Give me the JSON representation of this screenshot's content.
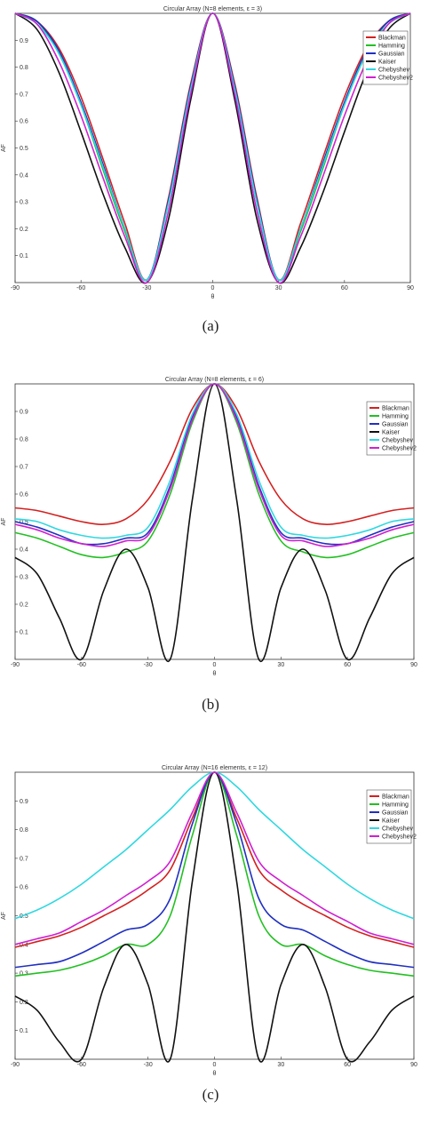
{
  "captions": [
    "(a)",
    "(b)",
    "(c)"
  ],
  "chart_data": [
    {
      "type": "line",
      "title": "Circular Array (N=8 elements, ε = 3)",
      "xlabel": "θ",
      "ylabel": "AF",
      "xlim": [
        -90,
        90
      ],
      "ylim": [
        0,
        1
      ],
      "xticks": [
        "-90",
        "-60",
        "-30",
        "0",
        "30",
        "60",
        "90"
      ],
      "yticks": [
        "0.1",
        "0.2",
        "0.3",
        "0.4",
        "0.5",
        "0.6",
        "0.7",
        "0.8",
        "0.9"
      ],
      "grid": false,
      "legend_position": "top-right",
      "series": [
        {
          "name": "Blackman",
          "color": "#d42020",
          "x": [
            -90,
            -80,
            -70,
            -60,
            -50,
            -40,
            -30,
            -20,
            -10,
            0,
            10,
            20,
            30,
            40,
            50,
            60,
            70,
            80,
            90
          ],
          "values": [
            1,
            0.97,
            0.87,
            0.69,
            0.46,
            0.22,
            0.01,
            0.32,
            0.74,
            1,
            0.74,
            0.32,
            0.01,
            0.22,
            0.46,
            0.69,
            0.87,
            0.97,
            1
          ]
        },
        {
          "name": "Hamming",
          "color": "#22c022",
          "x": [
            -90,
            -80,
            -70,
            -60,
            -50,
            -40,
            -30,
            -20,
            -10,
            0,
            10,
            20,
            30,
            40,
            50,
            60,
            70,
            80,
            90
          ],
          "values": [
            1,
            0.97,
            0.85,
            0.66,
            0.42,
            0.19,
            0.01,
            0.3,
            0.72,
            1,
            0.72,
            0.3,
            0.01,
            0.19,
            0.42,
            0.66,
            0.85,
            0.97,
            1
          ]
        },
        {
          "name": "Gaussian",
          "color": "#2030c0",
          "x": [
            -90,
            -80,
            -70,
            -60,
            -50,
            -40,
            -30,
            -20,
            -10,
            0,
            10,
            20,
            30,
            40,
            50,
            60,
            70,
            80,
            90
          ],
          "values": [
            1,
            0.97,
            0.86,
            0.67,
            0.44,
            0.2,
            0.01,
            0.31,
            0.73,
            1,
            0.73,
            0.31,
            0.01,
            0.2,
            0.44,
            0.67,
            0.86,
            0.97,
            1
          ]
        },
        {
          "name": "Kaiser",
          "color": "#111111",
          "x": [
            -90,
            -80,
            -70,
            -60,
            -50,
            -40,
            -30,
            -20,
            -10,
            0,
            10,
            20,
            30,
            40,
            50,
            60,
            70,
            80,
            90
          ],
          "values": [
            1,
            0.94,
            0.78,
            0.56,
            0.33,
            0.13,
            0.0,
            0.24,
            0.68,
            1,
            0.68,
            0.24,
            0.0,
            0.13,
            0.33,
            0.56,
            0.78,
            0.94,
            1
          ]
        },
        {
          "name": "Chebyshev",
          "color": "#30d8e0",
          "x": [
            -90,
            -80,
            -70,
            -60,
            -50,
            -40,
            -30,
            -20,
            -10,
            0,
            10,
            20,
            30,
            40,
            50,
            60,
            70,
            80,
            90
          ],
          "values": [
            1,
            0.96,
            0.85,
            0.66,
            0.43,
            0.2,
            0.01,
            0.3,
            0.72,
            1,
            0.72,
            0.3,
            0.01,
            0.2,
            0.43,
            0.66,
            0.85,
            0.96,
            1
          ]
        },
        {
          "name": "Chebyshev2",
          "color": "#d020d0",
          "x": [
            -90,
            -80,
            -70,
            -60,
            -50,
            -40,
            -30,
            -20,
            -10,
            0,
            10,
            20,
            30,
            40,
            50,
            60,
            70,
            80,
            90
          ],
          "values": [
            1,
            0.96,
            0.82,
            0.62,
            0.39,
            0.17,
            0.0,
            0.27,
            0.7,
            1,
            0.7,
            0.27,
            0.0,
            0.17,
            0.39,
            0.62,
            0.82,
            0.96,
            1
          ]
        }
      ]
    },
    {
      "type": "line",
      "title": "Circular Array (N=8 elements, ε = 6)",
      "xlabel": "θ",
      "ylabel": "AF",
      "xlim": [
        -90,
        90
      ],
      "ylim": [
        0,
        1
      ],
      "xticks": [
        "-90",
        "-60",
        "-30",
        "0",
        "30",
        "60",
        "90"
      ],
      "yticks": [
        "0.1",
        "0.2",
        "0.3",
        "0.4",
        "0.5",
        "0.6",
        "0.7",
        "0.8",
        "0.9"
      ],
      "grid": false,
      "legend_position": "top-right",
      "series": [
        {
          "name": "Blackman",
          "color": "#d42020",
          "x": [
            -90,
            -80,
            -70,
            -60,
            -50,
            -40,
            -30,
            -20,
            -10,
            0,
            10,
            20,
            30,
            40,
            50,
            60,
            70,
            80,
            90
          ],
          "values": [
            0.55,
            0.54,
            0.52,
            0.5,
            0.49,
            0.51,
            0.58,
            0.72,
            0.91,
            1,
            0.91,
            0.72,
            0.58,
            0.51,
            0.49,
            0.5,
            0.52,
            0.54,
            0.55
          ]
        },
        {
          "name": "Hamming",
          "color": "#22c022",
          "x": [
            -90,
            -80,
            -70,
            -60,
            -50,
            -40,
            -30,
            -20,
            -10,
            0,
            10,
            20,
            30,
            40,
            50,
            60,
            70,
            80,
            90
          ],
          "values": [
            0.46,
            0.44,
            0.41,
            0.38,
            0.37,
            0.39,
            0.43,
            0.6,
            0.86,
            1,
            0.86,
            0.6,
            0.43,
            0.39,
            0.37,
            0.38,
            0.41,
            0.44,
            0.46
          ]
        },
        {
          "name": "Gaussian",
          "color": "#2030c0",
          "x": [
            -90,
            -80,
            -70,
            -60,
            -50,
            -40,
            -30,
            -20,
            -10,
            0,
            10,
            20,
            30,
            40,
            50,
            60,
            70,
            80,
            90
          ],
          "values": [
            0.5,
            0.48,
            0.45,
            0.42,
            0.42,
            0.44,
            0.46,
            0.63,
            0.88,
            1,
            0.88,
            0.63,
            0.46,
            0.44,
            0.42,
            0.42,
            0.45,
            0.48,
            0.5
          ]
        },
        {
          "name": "Kaiser",
          "color": "#111111",
          "x": [
            -90,
            -80,
            -70,
            -60,
            -50,
            -40,
            -30,
            -20,
            -10,
            0,
            10,
            20,
            30,
            40,
            50,
            60,
            70,
            80,
            90
          ],
          "values": [
            0.37,
            0.31,
            0.15,
            0.0,
            0.25,
            0.4,
            0.26,
            0.0,
            0.58,
            1,
            0.58,
            0.0,
            0.26,
            0.4,
            0.25,
            0.0,
            0.15,
            0.31,
            0.37
          ]
        },
        {
          "name": "Chebyshev",
          "color": "#30d8e0",
          "x": [
            -90,
            -80,
            -70,
            -60,
            -50,
            -40,
            -30,
            -20,
            -10,
            0,
            10,
            20,
            30,
            40,
            50,
            60,
            70,
            80,
            90
          ],
          "values": [
            0.51,
            0.5,
            0.47,
            0.45,
            0.44,
            0.45,
            0.48,
            0.65,
            0.89,
            1,
            0.89,
            0.65,
            0.48,
            0.45,
            0.44,
            0.45,
            0.47,
            0.5,
            0.51
          ]
        },
        {
          "name": "Chebyshev2",
          "color": "#d020d0",
          "x": [
            -90,
            -80,
            -70,
            -60,
            -50,
            -40,
            -30,
            -20,
            -10,
            0,
            10,
            20,
            30,
            40,
            50,
            60,
            70,
            80,
            90
          ],
          "values": [
            0.49,
            0.47,
            0.44,
            0.42,
            0.41,
            0.43,
            0.45,
            0.62,
            0.87,
            1,
            0.87,
            0.62,
            0.45,
            0.43,
            0.41,
            0.42,
            0.44,
            0.47,
            0.49
          ]
        }
      ]
    },
    {
      "type": "line",
      "title": "Circular Array (N=16 elements, ε = 12)",
      "xlabel": "θ",
      "ylabel": "AF",
      "xlim": [
        -90,
        90
      ],
      "ylim": [
        0,
        1
      ],
      "xticks": [
        "-90",
        "-60",
        "-30",
        "0",
        "30",
        "60",
        "90"
      ],
      "yticks": [
        "0.1",
        "0.2",
        "0.3",
        "0.4",
        "0.5",
        "0.6",
        "0.7",
        "0.8",
        "0.9"
      ],
      "grid": false,
      "legend_position": "top-right",
      "series": [
        {
          "name": "Blackman",
          "color": "#d42020",
          "x": [
            -90,
            -80,
            -70,
            -60,
            -50,
            -40,
            -30,
            -20,
            -10,
            0,
            10,
            20,
            30,
            40,
            50,
            60,
            70,
            80,
            90
          ],
          "values": [
            0.39,
            0.41,
            0.43,
            0.46,
            0.5,
            0.54,
            0.59,
            0.66,
            0.84,
            1,
            0.84,
            0.66,
            0.59,
            0.54,
            0.5,
            0.46,
            0.43,
            0.41,
            0.39
          ]
        },
        {
          "name": "Hamming",
          "color": "#22c022",
          "x": [
            -90,
            -80,
            -70,
            -60,
            -50,
            -40,
            -30,
            -20,
            -10,
            0,
            10,
            20,
            30,
            40,
            50,
            60,
            70,
            80,
            90
          ],
          "values": [
            0.29,
            0.3,
            0.31,
            0.33,
            0.36,
            0.4,
            0.4,
            0.5,
            0.78,
            1,
            0.78,
            0.5,
            0.4,
            0.4,
            0.36,
            0.33,
            0.31,
            0.3,
            0.29
          ]
        },
        {
          "name": "Gaussian",
          "color": "#2030c0",
          "x": [
            -90,
            -80,
            -70,
            -60,
            -50,
            -40,
            -30,
            -20,
            -10,
            0,
            10,
            20,
            30,
            40,
            50,
            60,
            70,
            80,
            90
          ],
          "values": [
            0.32,
            0.33,
            0.34,
            0.37,
            0.41,
            0.45,
            0.47,
            0.56,
            0.82,
            1,
            0.82,
            0.56,
            0.47,
            0.45,
            0.41,
            0.37,
            0.34,
            0.33,
            0.32
          ]
        },
        {
          "name": "Kaiser",
          "color": "#111111",
          "x": [
            -90,
            -80,
            -70,
            -60,
            -50,
            -40,
            -30,
            -20,
            -10,
            0,
            10,
            20,
            30,
            40,
            50,
            60,
            70,
            80,
            90
          ],
          "values": [
            0.22,
            0.17,
            0.06,
            0.0,
            0.25,
            0.4,
            0.26,
            0.0,
            0.62,
            1,
            0.62,
            0.0,
            0.26,
            0.4,
            0.25,
            0.0,
            0.06,
            0.17,
            0.22
          ]
        },
        {
          "name": "Chebyshev",
          "color": "#30d8e0",
          "x": [
            -90,
            -80,
            -70,
            -60,
            -50,
            -40,
            -30,
            -20,
            -10,
            0,
            10,
            20,
            30,
            40,
            50,
            60,
            70,
            80,
            90
          ],
          "values": [
            0.49,
            0.52,
            0.56,
            0.61,
            0.67,
            0.73,
            0.8,
            0.87,
            0.95,
            1,
            0.95,
            0.87,
            0.8,
            0.73,
            0.67,
            0.61,
            0.56,
            0.52,
            0.49
          ]
        },
        {
          "name": "Chebyshev2",
          "color": "#d020d0",
          "x": [
            -90,
            -80,
            -70,
            -60,
            -50,
            -40,
            -30,
            -20,
            -10,
            0,
            10,
            20,
            30,
            40,
            50,
            60,
            70,
            80,
            90
          ],
          "values": [
            0.4,
            0.42,
            0.44,
            0.48,
            0.52,
            0.57,
            0.62,
            0.69,
            0.86,
            1,
            0.86,
            0.69,
            0.62,
            0.57,
            0.52,
            0.48,
            0.44,
            0.42,
            0.4
          ]
        }
      ]
    }
  ]
}
